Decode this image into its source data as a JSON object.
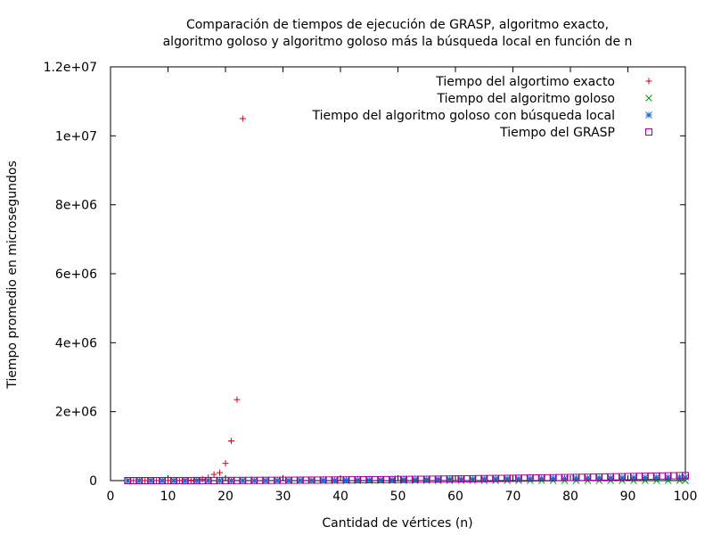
{
  "chart_data": {
    "type": "scatter",
    "title_lines": [
      "Comparación de tiempos de ejecución de GRASP, algoritmo exacto,",
      "algoritmo goloso y algoritmo goloso más la búsqueda local en función de n"
    ],
    "xlabel": "Cantidad de vértices (n)",
    "ylabel": "Tiempo promedio en microsegundos",
    "xlim": [
      0,
      100
    ],
    "ylim": [
      0,
      12000000
    ],
    "x_ticks": [
      0,
      10,
      20,
      30,
      40,
      50,
      60,
      70,
      80,
      90,
      100
    ],
    "x_tick_labels": [
      "0",
      "10",
      "20",
      "30",
      "40",
      "50",
      "60",
      "70",
      "80",
      "90",
      "100"
    ],
    "y_ticks": [
      0,
      2000000,
      4000000,
      6000000,
      8000000,
      10000000,
      12000000
    ],
    "y_tick_labels": [
      "0",
      "2e+06",
      "4e+06",
      "6e+06",
      "8e+06",
      "1e+07",
      "1.2e+07"
    ],
    "grid": false,
    "legend_position": "top-right",
    "series": [
      {
        "name": "Tiempo del algortimo exacto",
        "marker": "plus",
        "color": "#c8001e",
        "x": [
          3,
          4,
          5,
          6,
          7,
          8,
          9,
          10,
          11,
          12,
          13,
          14,
          15,
          16,
          17,
          18,
          19,
          20,
          21,
          22,
          23
        ],
        "y": [
          5,
          10,
          20,
          40,
          80,
          160,
          320,
          700,
          1400,
          2800,
          5600,
          11000,
          22000,
          45000,
          90000,
          180000,
          230000,
          500000,
          1150000,
          2350000,
          10500000
        ]
      },
      {
        "name": "Tiempo del algoritmo goloso",
        "marker": "cross",
        "color": "#009e00",
        "x": [
          3,
          5,
          7,
          9,
          11,
          13,
          15,
          17,
          19,
          21,
          23,
          25,
          27,
          29,
          31,
          33,
          35,
          37,
          39,
          41,
          43,
          45,
          47,
          49,
          51,
          53,
          55,
          57,
          59,
          61,
          63,
          65,
          67,
          69,
          71,
          73,
          75,
          77,
          79,
          81,
          83,
          85,
          87,
          89,
          91,
          93,
          95,
          97,
          99,
          100
        ],
        "y": [
          1,
          1,
          1,
          2,
          2,
          3,
          3,
          4,
          4,
          5,
          5,
          6,
          7,
          8,
          9,
          10,
          11,
          12,
          13,
          14,
          15,
          16,
          17,
          18,
          19,
          20,
          22,
          24,
          26,
          28,
          30,
          32,
          34,
          36,
          38,
          40,
          42,
          44,
          46,
          48,
          50,
          52,
          54,
          56,
          58,
          60,
          62,
          64,
          66,
          68
        ]
      },
      {
        "name": "Tiempo del algoritmo goloso con búsqueda local",
        "marker": "star",
        "color": "#1e64c8",
        "x": [
          3,
          5,
          7,
          9,
          11,
          13,
          15,
          17,
          19,
          21,
          23,
          25,
          27,
          29,
          31,
          33,
          35,
          37,
          39,
          41,
          43,
          45,
          47,
          49,
          51,
          53,
          55,
          57,
          59,
          61,
          63,
          65,
          67,
          69,
          71,
          73,
          75,
          77,
          79,
          81,
          83,
          85,
          87,
          89,
          91,
          93,
          95,
          97,
          99,
          100
        ],
        "y": [
          5,
          10,
          20,
          40,
          80,
          150,
          250,
          400,
          600,
          900,
          1300,
          1800,
          2500,
          3300,
          4300,
          5500,
          7000,
          8700,
          10600,
          12800,
          15300,
          18000,
          21000,
          24000,
          27000,
          30000,
          33000,
          36000,
          39000,
          42000,
          45000,
          48000,
          51000,
          54000,
          57000,
          60000,
          63000,
          66000,
          69000,
          72000,
          75000,
          78000,
          81000,
          84000,
          87000,
          90000,
          93000,
          96000,
          99000,
          100000
        ]
      },
      {
        "name": "Tiempo del GRASP",
        "marker": "square",
        "color": "#a000a0",
        "x": [
          3,
          4,
          5,
          6,
          7,
          8,
          9,
          10,
          11,
          12,
          13,
          14,
          15,
          16,
          17,
          18,
          19,
          20,
          21,
          22,
          23,
          24,
          25,
          26,
          27,
          28,
          29,
          30,
          31,
          32,
          33,
          34,
          35,
          36,
          37,
          38,
          39,
          40,
          41,
          42,
          43,
          44,
          45,
          46,
          47,
          48,
          49,
          50,
          51,
          52,
          53,
          54,
          55,
          56,
          57,
          58,
          59,
          60,
          61,
          62,
          63,
          64,
          65,
          66,
          67,
          68,
          69,
          70,
          71,
          72,
          73,
          74,
          75,
          76,
          77,
          78,
          79,
          80,
          81,
          82,
          83,
          84,
          85,
          86,
          87,
          88,
          89,
          90,
          91,
          92,
          93,
          94,
          95,
          96,
          97,
          98,
          99,
          100
        ],
        "y": [
          100,
          150,
          200,
          300,
          400,
          500,
          650,
          800,
          1000,
          1200,
          1400,
          1700,
          2000,
          2300,
          2600,
          3000,
          3400,
          3800,
          4300,
          4800,
          5300,
          5900,
          6500,
          7100,
          7800,
          8500,
          9200,
          10000,
          10800,
          11600,
          12500,
          13400,
          14300,
          15300,
          16300,
          17300,
          18400,
          19500,
          20600,
          21800,
          23000,
          24200,
          25500,
          26800,
          28100,
          29500,
          30900,
          32300,
          33800,
          35300,
          36800,
          38400,
          40000,
          41600,
          43300,
          45000,
          46700,
          48500,
          50300,
          52100,
          54000,
          55900,
          57800,
          59800,
          61800,
          63800,
          65900,
          68000,
          70100,
          72300,
          74500,
          76700,
          79000,
          81300,
          83600,
          86000,
          88400,
          90800,
          93300,
          95800,
          98300,
          100900,
          103500,
          106100,
          108800,
          111500,
          114200,
          117000,
          119800,
          122600,
          125500,
          128400,
          131300,
          134300,
          137300,
          140300,
          143400,
          146500
        ]
      }
    ]
  }
}
